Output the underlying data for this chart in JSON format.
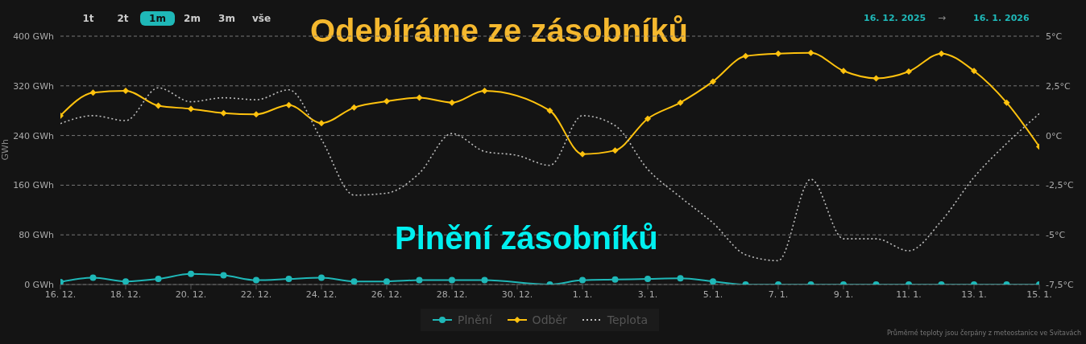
{
  "chart_data": {
    "type": "line",
    "title": "Odebíráme ze zásobníků",
    "subtitle": "Plnění zásobníků",
    "ylabel": "GWh",
    "annotations": [
      "1t",
      "2t",
      "1m",
      "2m",
      "3m",
      "vše",
      "16. 12. 2025",
      "→",
      "16. 1. 2026",
      "Průměrné teploty jsou čerpány z meteostanice ve Svitavách"
    ],
    "categories": [
      "16. 12.",
      null,
      "18. 12.",
      null,
      "20. 12.",
      null,
      "22. 12.",
      null,
      "24. 12.",
      null,
      "26. 12.",
      null,
      "28. 12.",
      null,
      "30. 12.",
      null,
      "1. 1.",
      null,
      "3. 1.",
      null,
      "5. 1.",
      null,
      "7. 1.",
      null,
      "9. 1.",
      null,
      "11. 1.",
      null,
      "13. 1.",
      null,
      "15. 1."
    ],
    "series": [
      {
        "name": "Plnění",
        "color": "#1fb8b8",
        "marker": "circle",
        "line_style": "solid",
        "values": [
          4,
          11,
          5,
          9,
          17,
          15,
          7,
          9,
          11,
          5,
          5,
          7,
          7,
          7,
          null,
          0,
          7,
          8,
          9,
          10,
          5,
          0,
          0,
          0,
          0,
          0,
          0,
          0,
          0,
          0,
          0
        ]
      },
      {
        "name": "Odběr",
        "color": "#ffc20e",
        "marker": "diamond",
        "line_style": "solid",
        "values": [
          272,
          309,
          312,
          288,
          283,
          276,
          274,
          289,
          260,
          285,
          295,
          301,
          293,
          312,
          null,
          280,
          210,
          216,
          267,
          293,
          327,
          368,
          372,
          373,
          344,
          332,
          343,
          372,
          344,
          293,
          222
        ]
      },
      {
        "name": "Teplota",
        "color": "#bdbdbd",
        "marker": "none",
        "line_style": "dotted",
        "axis": "y2",
        "values": [
          0.6,
          1.0,
          0.75,
          2.4,
          1.7,
          1.9,
          1.8,
          2.3,
          -0.2,
          -3.0,
          -2.9,
          -1.9,
          0.1,
          -0.8,
          -1.0,
          -1.5,
          1.0,
          0.5,
          -1.7,
          -3.1,
          -4.4,
          -6.0,
          -6.3,
          -2.2,
          -5.2,
          -5.2,
          -5.8,
          -4.3,
          -2.1,
          -0.4,
          1.1
        ]
      }
    ],
    "ylim": [
      0,
      400
    ],
    "yticks": [
      {
        "value": 0,
        "label": "0 GWh"
      },
      {
        "value": 80,
        "label": "80 GWh"
      },
      {
        "value": 160,
        "label": "160 GWh"
      },
      {
        "value": 240,
        "label": "240 GWh"
      },
      {
        "value": 320,
        "label": "320 GWh"
      },
      {
        "value": 400,
        "label": "400 GWh"
      }
    ],
    "y2lim": [
      -7.5,
      5
    ],
    "y2ticks": [
      {
        "value": -7.5,
        "label": "-7,5°C"
      },
      {
        "value": -5,
        "label": "-5°C"
      },
      {
        "value": -2.5,
        "label": "-2,5°C"
      },
      {
        "value": 0,
        "label": "0°C"
      },
      {
        "value": 2.5,
        "label": "2,5°C"
      },
      {
        "value": 5,
        "label": "5°C"
      }
    ],
    "grid": "y",
    "legend": "bottom"
  }
}
